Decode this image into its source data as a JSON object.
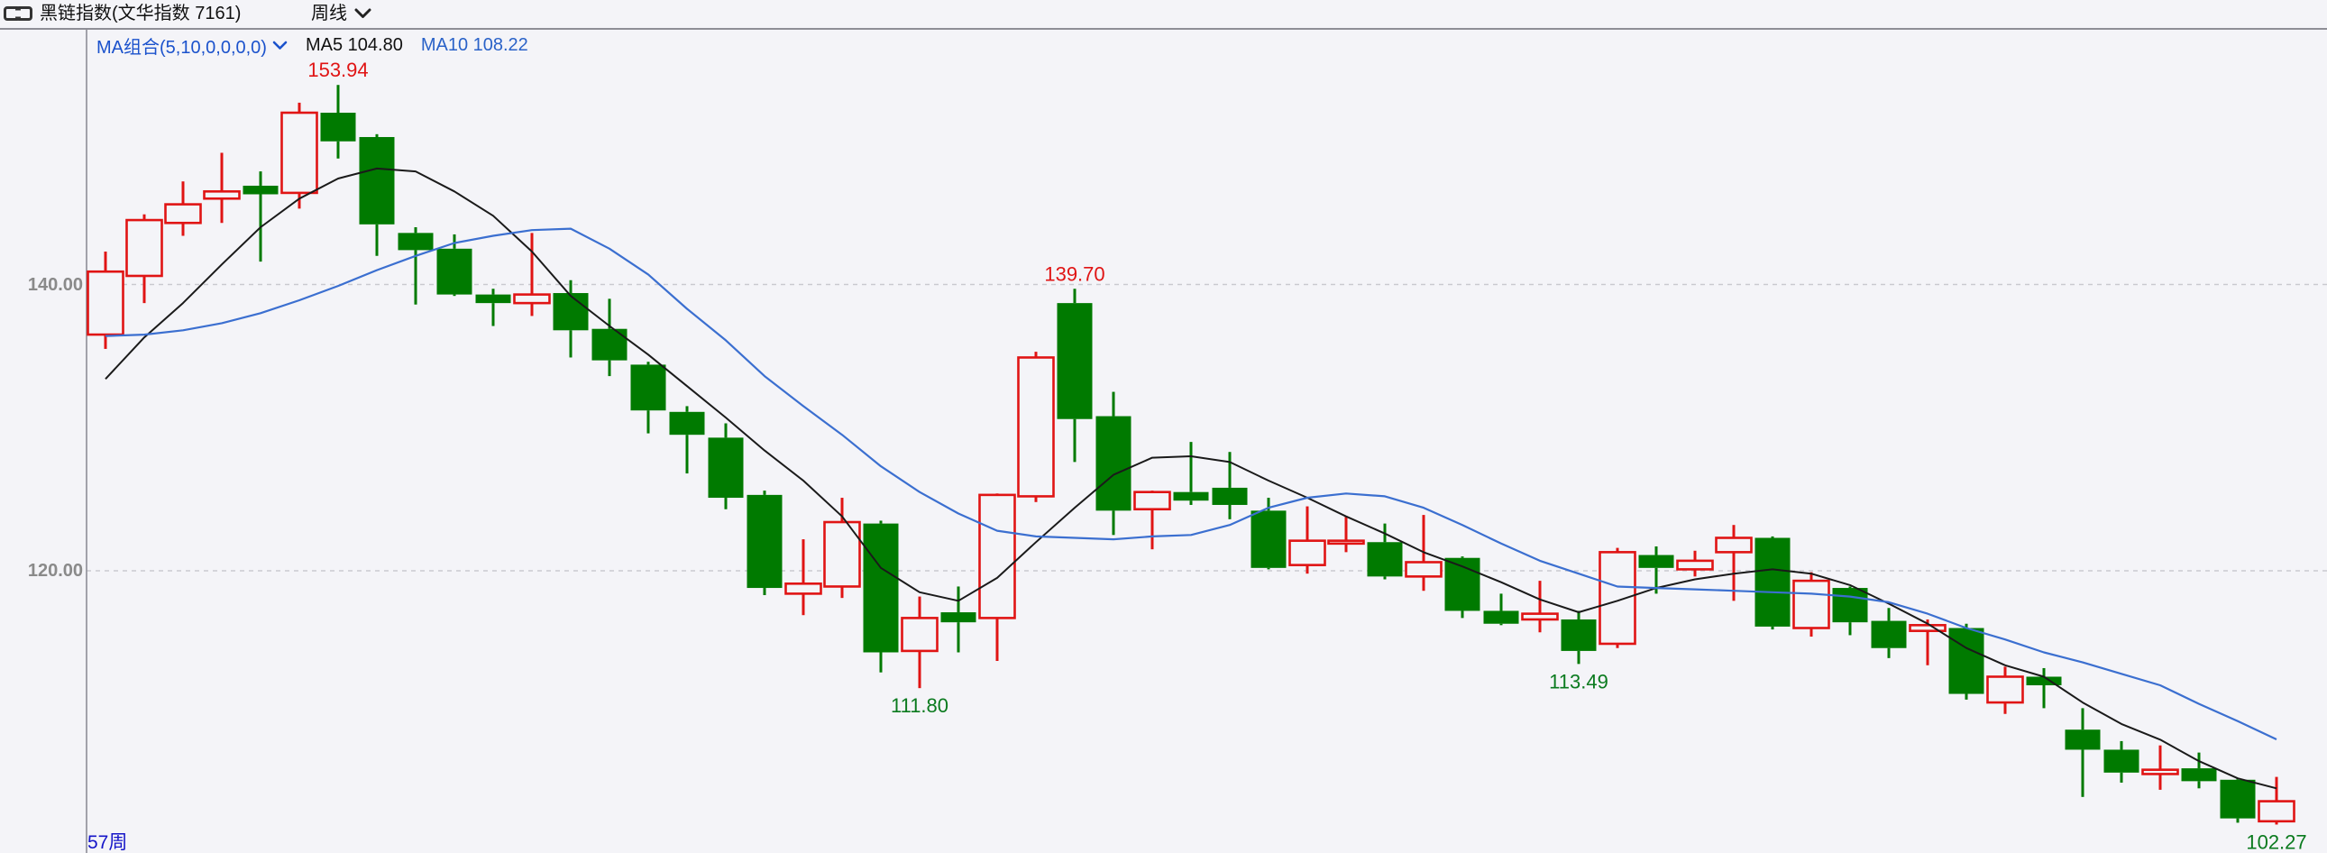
{
  "header": {
    "title": "黑链指数(文华指数  7161)",
    "period_label": "周线"
  },
  "indicator_bar": {
    "ma_group_label": "MA组合(5,10,0,0,0,0)",
    "ma5_label": "MA5 104.80",
    "ma10_label": "MA10 108.22"
  },
  "footer": {
    "week_count_label": "57周"
  },
  "colors": {
    "background": "#f4f4f8",
    "up": "#e01414",
    "down": "#007a00",
    "ma5_line": "#1a1a1a",
    "ma10_line": "#3b6fd0",
    "grid": "#c9c9cf",
    "axis": "#8e8e96",
    "tick_text": "#8a8a8a",
    "footer_text": "#1414c8",
    "annotation_high": "#e01414",
    "annotation_low": "#0a7a1e"
  },
  "chart_data": {
    "type": "candlestick",
    "title": "黑链指数(文华指数 7161) 周线",
    "period": "weekly",
    "visible_bars": 57,
    "grid": "horizontal-dashed",
    "y_axis": {
      "side": "left",
      "ticks": [
        140.0,
        120.0
      ],
      "tick_labels": [
        "140.00",
        "120.00"
      ],
      "ylim": [
        100.2,
        157.5
      ]
    },
    "legend": {
      "position": "top-left-inside",
      "entries": [
        "MA5 104.80",
        "MA10 108.22"
      ]
    },
    "annotations": [
      {
        "text": "153.94",
        "candle": 7,
        "placement": "above",
        "color": "#e01414"
      },
      {
        "text": "139.70",
        "candle": 26,
        "placement": "above",
        "color": "#e01414"
      },
      {
        "text": "111.80",
        "candle": 22,
        "placement": "below",
        "color": "#0a7a1e"
      },
      {
        "text": "113.49",
        "candle": 39,
        "placement": "below",
        "color": "#0a7a1e"
      },
      {
        "text": "102.27",
        "candle": 57,
        "placement": "below",
        "color": "#0a7a1e"
      }
    ],
    "candles": [
      {
        "o": 136.5,
        "h": 142.3,
        "l": 135.5,
        "c": 140.9
      },
      {
        "o": 140.6,
        "h": 144.9,
        "l": 138.7,
        "c": 144.5
      },
      {
        "o": 144.3,
        "h": 147.2,
        "l": 143.4,
        "c": 145.6
      },
      {
        "o": 146.0,
        "h": 149.2,
        "l": 144.3,
        "c": 146.5
      },
      {
        "o": 146.9,
        "h": 147.9,
        "l": 141.6,
        "c": 146.3
      },
      {
        "o": 146.4,
        "h": 152.7,
        "l": 145.3,
        "c": 152.0
      },
      {
        "o": 152.0,
        "h": 153.94,
        "l": 148.8,
        "c": 150.0
      },
      {
        "o": 150.3,
        "h": 150.5,
        "l": 142.0,
        "c": 144.2
      },
      {
        "o": 143.6,
        "h": 144.0,
        "l": 138.6,
        "c": 142.4
      },
      {
        "o": 142.5,
        "h": 143.5,
        "l": 139.2,
        "c": 139.3
      },
      {
        "o": 139.3,
        "h": 139.7,
        "l": 137.1,
        "c": 138.7
      },
      {
        "o": 138.7,
        "h": 143.6,
        "l": 137.8,
        "c": 139.3
      },
      {
        "o": 139.4,
        "h": 140.3,
        "l": 134.9,
        "c": 136.8
      },
      {
        "o": 136.9,
        "h": 139.0,
        "l": 133.6,
        "c": 134.7
      },
      {
        "o": 134.4,
        "h": 134.6,
        "l": 129.6,
        "c": 131.2
      },
      {
        "o": 131.1,
        "h": 131.5,
        "l": 126.8,
        "c": 129.5
      },
      {
        "o": 129.3,
        "h": 130.3,
        "l": 124.3,
        "c": 125.1
      },
      {
        "o": 125.3,
        "h": 125.6,
        "l": 118.3,
        "c": 118.8
      },
      {
        "o": 118.4,
        "h": 122.2,
        "l": 116.9,
        "c": 119.1
      },
      {
        "o": 118.9,
        "h": 125.1,
        "l": 118.1,
        "c": 123.4
      },
      {
        "o": 123.3,
        "h": 123.5,
        "l": 112.9,
        "c": 114.3
      },
      {
        "o": 114.4,
        "h": 118.2,
        "l": 111.8,
        "c": 116.7
      },
      {
        "o": 117.1,
        "h": 118.9,
        "l": 114.3,
        "c": 116.4
      },
      {
        "o": 116.7,
        "h": 125.4,
        "l": 113.7,
        "c": 125.3
      },
      {
        "o": 125.2,
        "h": 135.3,
        "l": 124.8,
        "c": 134.9
      },
      {
        "o": 138.7,
        "h": 139.7,
        "l": 127.6,
        "c": 130.6
      },
      {
        "o": 130.8,
        "h": 132.5,
        "l": 122.5,
        "c": 124.2
      },
      {
        "o": 124.3,
        "h": 125.6,
        "l": 121.5,
        "c": 125.5
      },
      {
        "o": 125.5,
        "h": 129.0,
        "l": 124.6,
        "c": 124.9
      },
      {
        "o": 125.8,
        "h": 128.3,
        "l": 123.6,
        "c": 124.6
      },
      {
        "o": 124.2,
        "h": 125.1,
        "l": 120.1,
        "c": 120.2
      },
      {
        "o": 120.4,
        "h": 124.5,
        "l": 119.8,
        "c": 122.1
      },
      {
        "o": 121.9,
        "h": 123.8,
        "l": 121.3,
        "c": 122.1
      },
      {
        "o": 122.0,
        "h": 123.3,
        "l": 119.4,
        "c": 119.6
      },
      {
        "o": 119.6,
        "h": 123.9,
        "l": 118.6,
        "c": 120.6
      },
      {
        "o": 120.9,
        "h": 121.0,
        "l": 116.7,
        "c": 117.2
      },
      {
        "o": 117.2,
        "h": 118.4,
        "l": 116.2,
        "c": 116.3
      },
      {
        "o": 116.6,
        "h": 119.3,
        "l": 115.7,
        "c": 117.0
      },
      {
        "o": 116.6,
        "h": 117.2,
        "l": 113.49,
        "c": 114.4
      },
      {
        "o": 114.9,
        "h": 121.6,
        "l": 114.6,
        "c": 121.3
      },
      {
        "o": 121.1,
        "h": 121.7,
        "l": 118.4,
        "c": 120.2
      },
      {
        "o": 120.1,
        "h": 121.4,
        "l": 119.6,
        "c": 120.7
      },
      {
        "o": 121.3,
        "h": 123.2,
        "l": 117.9,
        "c": 122.3
      },
      {
        "o": 122.3,
        "h": 122.4,
        "l": 115.9,
        "c": 116.1
      },
      {
        "o": 116.0,
        "h": 119.9,
        "l": 115.4,
        "c": 119.3
      },
      {
        "o": 118.8,
        "h": 118.9,
        "l": 115.5,
        "c": 116.4
      },
      {
        "o": 116.5,
        "h": 117.4,
        "l": 113.9,
        "c": 114.6
      },
      {
        "o": 115.8,
        "h": 116.6,
        "l": 113.4,
        "c": 116.2
      },
      {
        "o": 116.0,
        "h": 116.3,
        "l": 111.0,
        "c": 111.4
      },
      {
        "o": 110.8,
        "h": 113.3,
        "l": 110.0,
        "c": 112.6
      },
      {
        "o": 112.6,
        "h": 113.2,
        "l": 110.4,
        "c": 112.0
      },
      {
        "o": 108.9,
        "h": 110.4,
        "l": 104.2,
        "c": 107.5
      },
      {
        "o": 107.5,
        "h": 108.1,
        "l": 105.2,
        "c": 105.9
      },
      {
        "o": 105.8,
        "h": 107.8,
        "l": 104.7,
        "c": 106.1
      },
      {
        "o": 106.2,
        "h": 107.3,
        "l": 104.8,
        "c": 105.3
      },
      {
        "o": 105.4,
        "h": 105.5,
        "l": 102.4,
        "c": 102.7
      },
      {
        "o": 102.5,
        "h": 105.6,
        "l": 102.27,
        "c": 103.9
      }
    ],
    "series": [
      {
        "name": "MA5",
        "color": "#1a1a1a",
        "values": [
          133.4,
          136.3,
          138.7,
          141.4,
          144.0,
          146.0,
          147.4,
          148.1,
          147.9,
          146.5,
          144.8,
          142.3,
          139.2,
          137.1,
          135.1,
          132.9,
          130.7,
          128.4,
          126.3,
          123.8,
          120.2,
          118.5,
          117.9,
          119.5,
          122.0,
          124.4,
          126.7,
          127.9,
          128.0,
          127.6,
          126.3,
          125.1,
          123.8,
          122.6,
          121.3,
          120.3,
          119.2,
          118.0,
          117.1,
          117.9,
          118.8,
          119.4,
          119.8,
          120.1,
          119.8,
          119.0,
          117.7,
          116.3,
          114.6,
          113.4,
          112.6,
          110.8,
          109.3,
          108.2,
          106.7,
          105.5,
          104.8
        ]
      },
      {
        "name": "MA10",
        "color": "#3b6fd0",
        "values": [
          136.4,
          136.5,
          136.8,
          137.3,
          138.0,
          138.9,
          139.9,
          141.0,
          142.0,
          142.9,
          143.4,
          143.8,
          143.9,
          142.5,
          140.7,
          138.3,
          136.1,
          133.6,
          131.5,
          129.5,
          127.3,
          125.5,
          124.0,
          122.8,
          122.4,
          122.3,
          122.2,
          122.4,
          122.5,
          123.2,
          124.4,
          125.1,
          125.4,
          125.2,
          124.4,
          123.2,
          121.9,
          120.7,
          119.8,
          118.9,
          118.8,
          118.7,
          118.6,
          118.5,
          118.4,
          118.2,
          117.8,
          117.0,
          116.0,
          115.2,
          114.3,
          113.6,
          112.8,
          112.0,
          110.7,
          109.5,
          108.22
        ]
      }
    ]
  }
}
